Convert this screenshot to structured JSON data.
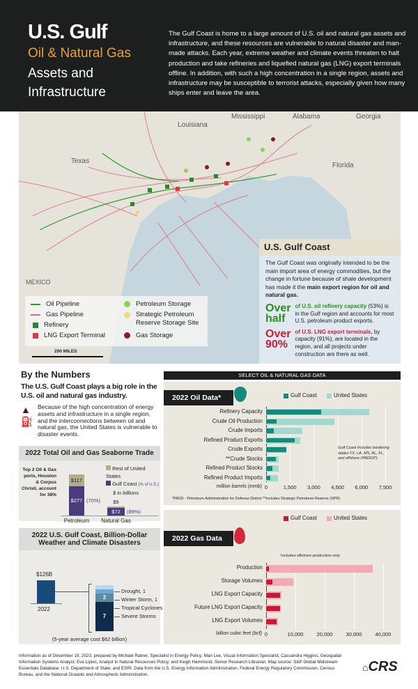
{
  "header": {
    "title1": "U.S. Gulf",
    "title2": "Oil & Natural Gas",
    "title3": "Assets and",
    "title4": "Infrastructure",
    "intro": "The Gulf Coast is home to a large amount of U.S. oil and natural gas assets and infrastructure, and these resources are vulnerable to natural disaster and man-made attacks. Each year, extreme weather and climate events threaten to halt production and take refineries and liquefied natural gas (LNG) export terminals offline. In addition, with such a high concentration in a single region, assets and infrastructure may be susceptible to terrorist attacks, especially given how many ships enter and leave the area."
  },
  "map": {
    "labels": {
      "texas": "Texas",
      "louisiana": "Louisiana",
      "mississippi": "Mississippi",
      "alabama": "Alabama",
      "georgia": "Georgia",
      "florida": "Florida",
      "mexico": "MEXICO"
    },
    "scale": "200 MILES",
    "legend": {
      "oil_pipeline": "Oil Pipeline",
      "gas_pipeline": "Gas Pipeline",
      "refinery": "Refinery",
      "lng": "LNG Export Terminal",
      "pet_storage": "Petroleum Storage",
      "spr": "Strategic Petroleum Reserve Storage Site",
      "gas_storage": "Gas Storage"
    },
    "colors": {
      "oil": "#2e9b2a",
      "gas": "#e06b7d",
      "refinery": "#1f8f2a",
      "lng": "#e0364a",
      "pet": "#8fd14f",
      "spr": "#f5d77a",
      "gasstore": "#8b1a24"
    }
  },
  "callout": {
    "title": "U.S. Gulf Coast",
    "body_a": "The Gulf Coast was originally intended to be the main import area of energy commodities, but the change in fortune because of shale development has made it the ",
    "body_b": "main export region for oil and natural gas.",
    "stat1": {
      "big": "Over half",
      "lead": "of U.S. oil refinery capacity",
      "rest": " (53%) is in the Gulf region and accounts for most U.S. petroleum product exports."
    },
    "stat2": {
      "big": "Over 90%",
      "lead": "of U.S. LNG export terminals,",
      "rest": " by capacity (91%), are located in the region, and all projects under construction are there as well."
    }
  },
  "numbers": {
    "title": "By the Numbers",
    "subtitle": "The U.S. Gulf Coast plays a big role in the U.S. oil and natural gas industry.",
    "note": "Because of the high concentration of energy assets and infrastructure in a single region, and the interconnections between oil and natural gas, the United States is vulnerable to disaster events."
  },
  "seaborne": {
    "title": "2022 Total Oil and Gas Seaborne Trade",
    "legend_rest": "Rest of United States",
    "legend_gulf": "Gulf Coast",
    "legend_pct": "(% of U.S.)",
    "units": "$ in billions",
    "side_note": "Top 2 Oil & Gas ports, Houston & Corpus Christi, account for 38%",
    "bars": [
      {
        "name": "Petroleum",
        "gulf": 277,
        "rest": 117,
        "gulf_label": "$277",
        "rest_label": "$117",
        "pct": "(70%)"
      },
      {
        "name": "Natural Gas",
        "gulf": 72,
        "rest": 9,
        "gulf_label": "$72",
        "rest_label": "$9",
        "pct": "(89%)"
      }
    ]
  },
  "disasters": {
    "title": "2022 U.S. Gulf Coast, Billion-Dollar Weather and Climate Disasters",
    "cost_label": "$126B",
    "year": "2022",
    "footnote": "(5-year average cost $62 billion)",
    "segments": [
      {
        "label": "Severe Storms",
        "count": 7,
        "count_label": "7",
        "color": "#0f2a4a"
      },
      {
        "label": "Tropical Cyclones",
        "count": 2,
        "count_label": "2",
        "color": "#5b8aa3"
      },
      {
        "label": "Winter Storm, 1",
        "count": 1,
        "count_label": "",
        "color": "#6fa8d6"
      },
      {
        "label": "Drought, 1",
        "count": 1,
        "count_label": "",
        "color": "#b8daf0"
      }
    ]
  },
  "select_header": "SELECT OIL & NATURAL GAS DATA",
  "chart_data": [
    {
      "type": "bar",
      "title": "2022 Oil Data*",
      "legend": [
        "Gulf Coast",
        "United States"
      ],
      "xlabel": "million barrels (mmb)",
      "xlim": [
        0,
        7500
      ],
      "ticks": [
        "0",
        "1,500",
        "3,000",
        "4,500",
        "6,000",
        "7,500"
      ],
      "categories": [
        "Refinery Capacity",
        "Crude Oil Production",
        "Crude Imports",
        "Refined Product Exports",
        "Crude Exports",
        "**Crude Stocks",
        "Refined Product Stocks",
        "Refined Product Imports"
      ],
      "series": [
        {
          "name": "Gulf Coast",
          "values": [
            3450,
            640,
            470,
            1780,
            1270,
            610,
            380,
            250
          ]
        },
        {
          "name": "United States",
          "values": [
            6500,
            4300,
            2280,
            2150,
            1270,
            790,
            790,
            750
          ]
        }
      ],
      "note": "Gulf Coast includes bordering states-TX, LA, MS, AL, FL, and offshore (PADD3*)",
      "footnote": "*PADD - Petroleum Administration for Defense District   **Includes Strategic Petroleum Reserve (SPR)"
    },
    {
      "type": "bar",
      "title": "2022 Gas Data",
      "legend": [
        "Gulf Coast",
        "United States"
      ],
      "xlabel": "billion cubic feet (bcf)",
      "xlim": [
        0,
        40000
      ],
      "ticks": [
        "0",
        "10,000",
        "20,000",
        "30,000",
        "40,000"
      ],
      "categories": [
        "Production",
        "Storage Volumes",
        "LNG Export Capacity",
        "Future LNG Export Capacity",
        "LNG Export Volumes"
      ],
      "series": [
        {
          "name": "Gulf Coast",
          "values": [
            950,
            2060,
            4830,
            4830,
            3560
          ]
        },
        {
          "name": "United States",
          "values": [
            36400,
            9270,
            5300,
            4910,
            3960
          ]
        }
      ],
      "annotation": "Includes offshore production only"
    }
  ],
  "footer": {
    "credits": "Information as of December 19, 2023, prepared by Michael Ratner, Specialist in Energy Policy; Mari Lee, Visual Information Specialist; Cassandra Higgins, Geospatial Information Systems Analyst; Eva Lipiec, Analyst in Natural Resources Policy; and Keigh Hammond, Senior Research Librarian. Map source: S&P Global Midstream Essentials Database, U.S. Department of State, and ESRI. Data from the U.S. Energy Information Administration, Federal Energy Regulatory Commission, Census Bureau, and the National Oceanic and Atmospheric Administration.",
    "logo": "CRS"
  }
}
